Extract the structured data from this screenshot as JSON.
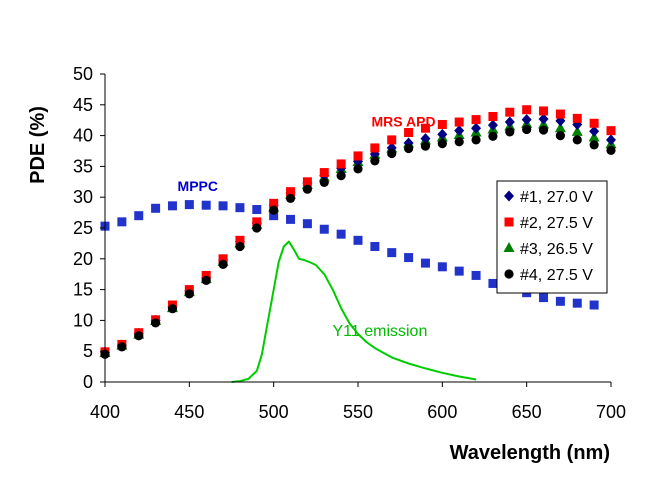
{
  "chart_data": {
    "type": "scatter",
    "xlabel": "Wavelength (nm)",
    "ylabel": "PDE (%)",
    "xlim": [
      400,
      700
    ],
    "ylim": [
      0,
      50
    ],
    "xticks": [
      "400",
      "450",
      "500",
      "550",
      "600",
      "650",
      "700"
    ],
    "yticks": [
      "0",
      "5",
      "10",
      "15",
      "20",
      "25",
      "30",
      "35",
      "40",
      "45",
      "50"
    ],
    "grid": false,
    "legend_position": "right",
    "annotations": [
      {
        "text": "MPPC",
        "color": "#0000cc",
        "x": 455,
        "y": 31
      },
      {
        "text": "MRS  APD",
        "color": "#ff0000",
        "x": 577,
        "y": 41.5
      },
      {
        "text": "Y11 emission",
        "color": "#00bb00",
        "x": 563,
        "y": 7.5
      }
    ],
    "series": [
      {
        "name": "MPPC",
        "in_legend": false,
        "marker": "square",
        "color": "#2233cc",
        "x": [
          400,
          410,
          420,
          430,
          440,
          450,
          460,
          470,
          480,
          490,
          500,
          510,
          520,
          530,
          540,
          550,
          560,
          570,
          580,
          590,
          600,
          610,
          620,
          630,
          640,
          650,
          660,
          670,
          680,
          690
        ],
        "y": [
          25.3,
          26.0,
          27.0,
          28.2,
          28.6,
          28.8,
          28.7,
          28.6,
          28.3,
          28.0,
          27.0,
          26.4,
          25.7,
          24.8,
          24.0,
          23.0,
          22.0,
          21.0,
          20.2,
          19.3,
          18.7,
          18.0,
          17.3,
          16.0,
          15.2,
          14.5,
          13.7,
          13.1,
          12.8,
          12.5
        ]
      },
      {
        "name": "#1, 27.0 V",
        "in_legend": true,
        "marker": "diamond",
        "color": "#000080",
        "x": [
          400,
          410,
          420,
          430,
          440,
          450,
          460,
          470,
          480,
          490,
          500,
          510,
          520,
          530,
          540,
          550,
          560,
          570,
          580,
          590,
          600,
          610,
          620,
          630,
          640,
          650,
          660,
          670,
          680,
          690,
          700
        ],
        "y": [
          4.8,
          6.0,
          7.9,
          10.0,
          12.2,
          14.8,
          16.9,
          19.8,
          22.8,
          25.8,
          28.7,
          30.7,
          32.3,
          33.5,
          34.7,
          35.8,
          37.0,
          38.0,
          38.8,
          39.5,
          40.2,
          40.8,
          41.2,
          41.7,
          42.2,
          42.6,
          42.7,
          42.4,
          41.8,
          40.7,
          39.3
        ]
      },
      {
        "name": "#2, 27.5 V",
        "in_legend": true,
        "marker": "square",
        "color": "#ff0000",
        "x": [
          400,
          410,
          420,
          430,
          440,
          450,
          460,
          470,
          480,
          490,
          500,
          510,
          520,
          530,
          540,
          550,
          560,
          570,
          580,
          590,
          600,
          610,
          620,
          630,
          640,
          650,
          660,
          670,
          680,
          690,
          700
        ],
        "y": [
          4.9,
          6.1,
          8.0,
          10.1,
          12.5,
          15.0,
          17.3,
          20.0,
          23.0,
          26.0,
          29.0,
          30.9,
          32.5,
          34.0,
          35.4,
          36.7,
          38.0,
          39.3,
          40.5,
          41.2,
          41.8,
          42.2,
          42.6,
          43.1,
          43.8,
          44.2,
          44.0,
          43.5,
          42.8,
          42.0,
          40.8
        ]
      },
      {
        "name": "#3, 26.5 V",
        "in_legend": true,
        "marker": "triangle",
        "color": "#008000",
        "x": [
          400,
          410,
          420,
          430,
          440,
          450,
          460,
          470,
          480,
          490,
          500,
          510,
          520,
          530,
          540,
          550,
          560,
          570,
          580,
          590,
          600,
          610,
          620,
          630,
          640,
          650,
          660,
          670,
          680,
          690,
          700
        ],
        "y": [
          4.7,
          5.9,
          7.7,
          9.9,
          12.0,
          14.6,
          16.7,
          19.5,
          22.5,
          25.5,
          28.3,
          30.4,
          32.0,
          33.2,
          34.6,
          35.7,
          36.9,
          37.9,
          38.7,
          39.2,
          39.7,
          40.1,
          40.5,
          41.0,
          41.5,
          41.9,
          41.8,
          41.2,
          40.6,
          39.7,
          38.6
        ]
      },
      {
        "name": "#4, 27.5 V",
        "in_legend": true,
        "marker": "circle",
        "color": "#000000",
        "x": [
          400,
          410,
          420,
          430,
          440,
          450,
          460,
          470,
          480,
          490,
          500,
          510,
          520,
          530,
          540,
          550,
          560,
          570,
          580,
          590,
          600,
          610,
          620,
          630,
          640,
          650,
          660,
          670,
          680,
          690,
          700
        ],
        "y": [
          4.5,
          5.7,
          7.5,
          9.6,
          11.9,
          14.3,
          16.5,
          19.1,
          22.0,
          25.0,
          27.9,
          29.8,
          31.3,
          32.4,
          33.5,
          34.6,
          35.9,
          37.1,
          37.9,
          38.3,
          38.7,
          39.0,
          39.3,
          39.9,
          40.6,
          41.0,
          40.9,
          40.0,
          39.3,
          38.5,
          37.6
        ]
      },
      {
        "name": "Y11 emission",
        "in_legend": false,
        "marker": "line",
        "color": "#00cc00",
        "x": [
          475,
          480,
          485,
          490,
          493,
          496,
          500,
          503,
          506,
          509,
          512,
          515,
          518,
          521,
          525,
          530,
          535,
          540,
          545,
          550,
          555,
          560,
          570,
          580,
          590,
          600,
          610,
          620
        ],
        "y": [
          0.0,
          0.15,
          0.5,
          1.8,
          4.5,
          9.0,
          15.0,
          19.5,
          22.0,
          22.8,
          21.5,
          20.0,
          19.8,
          19.5,
          19.0,
          17.5,
          15.0,
          12.0,
          9.5,
          7.8,
          6.5,
          5.5,
          4.0,
          3.0,
          2.2,
          1.5,
          0.9,
          0.4
        ]
      }
    ]
  }
}
